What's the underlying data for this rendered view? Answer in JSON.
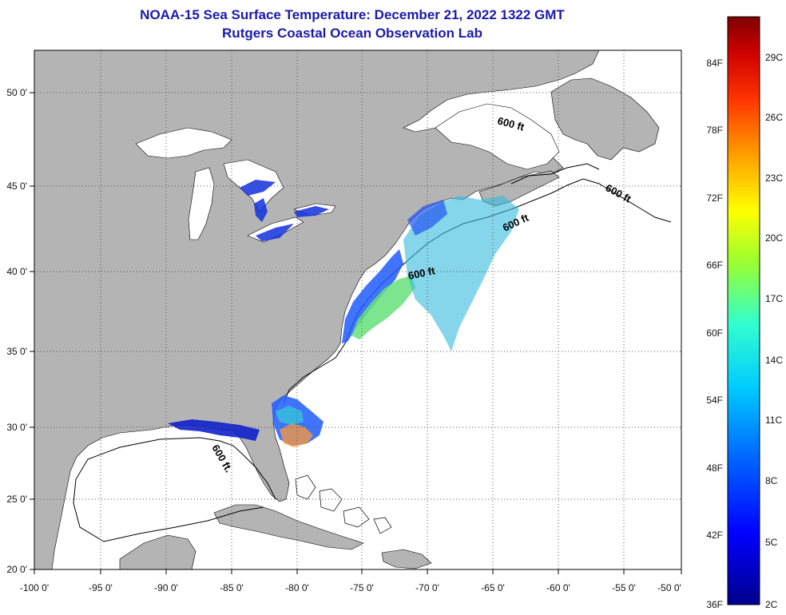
{
  "title": {
    "line1": "NOAA-15 Sea Surface Temperature:  December 21, 2022 1322 GMT",
    "line2": "Rutgers Coastal Ocean Observation Lab"
  },
  "axes": {
    "x_ticks": [
      "-100 0'",
      "-95 0'",
      "-90 0'",
      "-85 0'",
      "-80 0'",
      "-75 0'",
      "-70 0'",
      "-65 0'",
      "-60 0'",
      "-55 0'",
      "-50 0'"
    ],
    "y_ticks": [
      "50 0'",
      "45 0'",
      "40 0'",
      "35 0'",
      "30 0'",
      "25 0'",
      "20 0'"
    ]
  },
  "isobath_labels": [
    "600 ft",
    "600 ft",
    "600 ft",
    "600 ft",
    "600 ft."
  ],
  "colorbar": {
    "fahrenheit": [
      "84F",
      "78F",
      "72F",
      "66F",
      "60F",
      "54F",
      "48F",
      "42F",
      "36F"
    ],
    "celsius": [
      "29C",
      "26C",
      "23C",
      "20C",
      "17C",
      "14C",
      "11C",
      "8C",
      "5C",
      "2C"
    ],
    "colors": [
      "#00008b",
      "#0000ff",
      "#0066ff",
      "#00ccff",
      "#33ffcc",
      "#99ff33",
      "#ffff00",
      "#ff9900",
      "#ff3300",
      "#cc0000",
      "#7f0000"
    ]
  },
  "colors": {
    "land": "#b4b4b4",
    "ocean": "#ffffff",
    "title": "#1a1aa8"
  }
}
